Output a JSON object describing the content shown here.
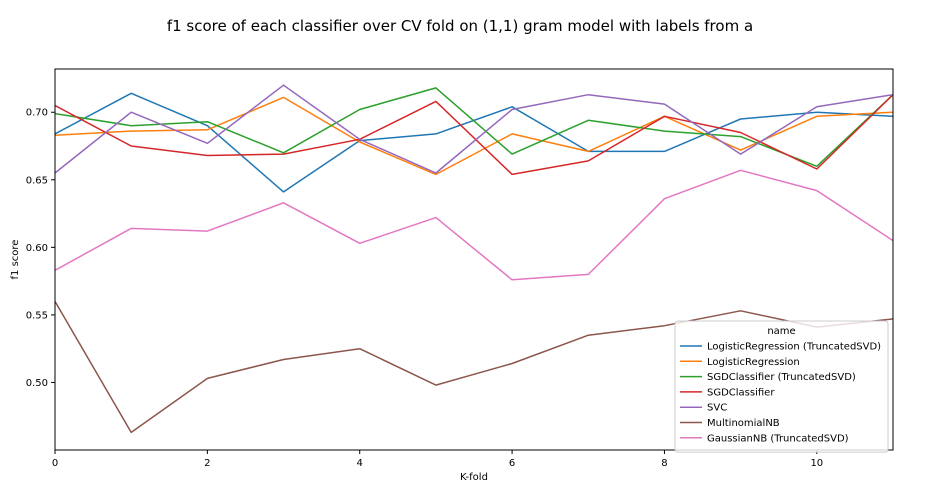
{
  "chart_data": {
    "type": "line",
    "title": "f1 score of each classifier over CV fold on (1,1) gram model with labels from a",
    "xlabel": "K-fold",
    "ylabel": "f1 score",
    "xlim": [
      0,
      11
    ],
    "ylim": [
      0.45,
      0.732
    ],
    "xticks": [
      0,
      2,
      4,
      6,
      8,
      10
    ],
    "yticks": [
      0.5,
      0.55,
      0.6,
      0.65,
      0.7
    ],
    "xtick_labels": [
      "0",
      "2",
      "4",
      "6",
      "8",
      "10"
    ],
    "ytick_labels": [
      "0.50",
      "0.55",
      "0.60",
      "0.65",
      "0.70"
    ],
    "grid": false,
    "legend": {
      "title": "name",
      "placement": "lower-right"
    },
    "x": [
      0,
      1,
      2,
      3,
      4,
      5,
      6,
      7,
      8,
      9,
      10,
      11
    ],
    "series": [
      {
        "name": "LogisticRegression (TruncatedSVD)",
        "color": "#1f77b4",
        "values": [
          0.684,
          0.714,
          0.69,
          0.641,
          0.679,
          0.684,
          0.704,
          0.671,
          0.671,
          0.695,
          0.7,
          0.697
        ]
      },
      {
        "name": "LogisticRegression",
        "color": "#ff7f0e",
        "values": [
          0.683,
          0.686,
          0.687,
          0.711,
          0.678,
          0.654,
          0.684,
          0.671,
          0.697,
          0.672,
          0.697,
          0.7
        ]
      },
      {
        "name": "SGDClassifier (TruncatedSVD)",
        "color": "#2ca02c",
        "values": [
          0.699,
          0.69,
          0.693,
          0.67,
          0.702,
          0.718,
          0.669,
          0.694,
          0.686,
          0.682,
          0.66,
          0.713
        ]
      },
      {
        "name": "SGDClassifier",
        "color": "#d62728",
        "values": [
          0.705,
          0.675,
          0.668,
          0.669,
          0.68,
          0.708,
          0.654,
          0.664,
          0.697,
          0.685,
          0.658,
          0.713
        ]
      },
      {
        "name": "SVC",
        "color": "#9467bd",
        "values": [
          0.655,
          0.7,
          0.677,
          0.72,
          0.68,
          0.655,
          0.702,
          0.713,
          0.706,
          0.669,
          0.704,
          0.713
        ]
      },
      {
        "name": "MultinomialNB",
        "color": "#8c564b",
        "values": [
          0.56,
          0.463,
          0.503,
          0.517,
          0.525,
          0.498,
          0.514,
          0.535,
          0.542,
          0.553,
          0.541,
          0.547
        ]
      },
      {
        "name": "GaussianNB (TruncatedSVD)",
        "color": "#e377c2",
        "values": [
          0.583,
          0.614,
          0.612,
          0.633,
          0.603,
          0.622,
          0.576,
          0.58,
          0.636,
          0.657,
          0.642,
          0.605
        ]
      }
    ]
  }
}
